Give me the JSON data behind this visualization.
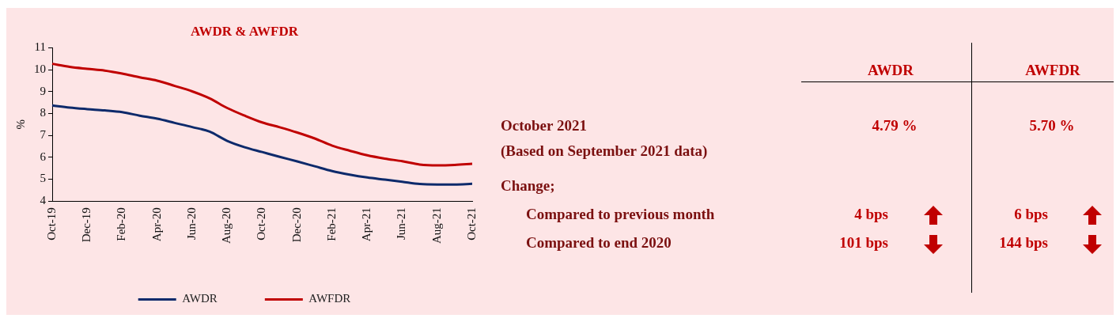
{
  "chart_data": [
    {
      "type": "line",
      "title": "AWDR & AWFDR",
      "ylabel": "%",
      "categories": [
        "Oct-19",
        null,
        "Dec-19",
        null,
        "Feb-20",
        null,
        "Apr-20",
        null,
        "Jun-20",
        null,
        "Aug-20",
        null,
        "Oct-20",
        null,
        "Dec-20",
        null,
        "Feb-21",
        null,
        "Apr-21",
        null,
        "Jun-21",
        null,
        "Aug-21",
        null,
        "Oct-21"
      ],
      "series": [
        {
          "name": "AWDR",
          "color": "#0d2a6b",
          "values": [
            8.37,
            8.27,
            8.2,
            8.14,
            8.06,
            7.9,
            7.76,
            7.57,
            7.38,
            7.17,
            6.75,
            6.46,
            6.24,
            6.02,
            5.81,
            5.59,
            5.37,
            5.21,
            5.08,
            4.98,
            4.88,
            4.78,
            4.76,
            4.76,
            4.79
          ]
        },
        {
          "name": "AWFDR",
          "color": "#c00000",
          "values": [
            10.27,
            10.13,
            10.04,
            9.96,
            9.82,
            9.65,
            9.5,
            9.26,
            9.01,
            8.69,
            8.25,
            7.9,
            7.59,
            7.37,
            7.13,
            6.86,
            6.53,
            6.3,
            6.09,
            5.94,
            5.82,
            5.67,
            5.63,
            5.65,
            5.7
          ]
        }
      ],
      "ylim": [
        4,
        11
      ],
      "yticks": [
        4,
        5,
        6,
        7,
        8,
        9,
        10,
        11
      ],
      "grid": false,
      "legend": "bottom",
      "marker": "none",
      "line_style": "solid"
    },
    {
      "type": "other",
      "annotations": [
        "AWDR",
        "AWFDR",
        "October 2021",
        "(Based on September 2021 data)",
        "4.79 %",
        "5.70 %",
        "Change;",
        "Compared to previous month",
        "4 bps",
        "6 bps",
        "Compared to end 2020",
        "101 bps",
        "144 bps"
      ]
    }
  ]
}
